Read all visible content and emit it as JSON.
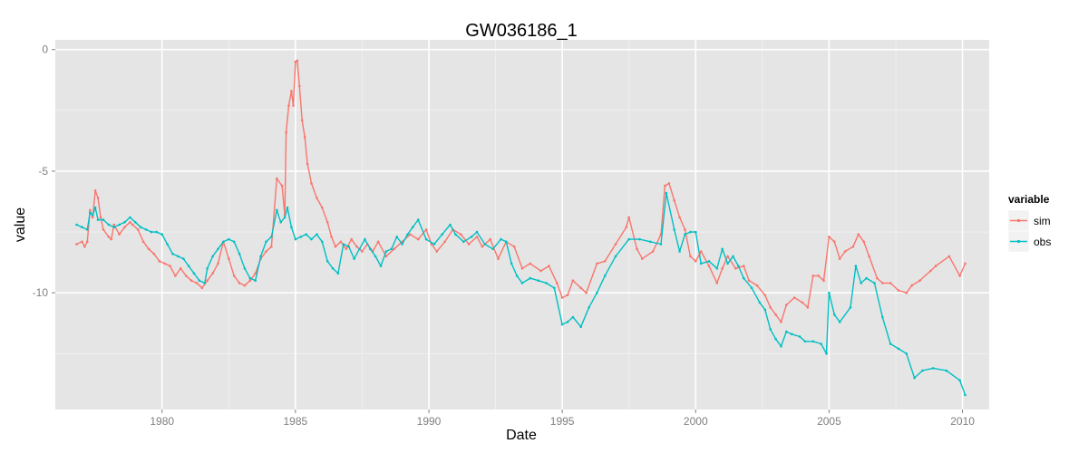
{
  "chart_data": {
    "type": "line",
    "title": "GW036186_1",
    "xlabel": "Date",
    "ylabel": "value",
    "x_axis": "date",
    "xlim": [
      1976.0,
      2011.0
    ],
    "ylim": [
      -14.8,
      0.4
    ],
    "x_ticks": [
      1980,
      1985,
      1990,
      1995,
      2000,
      2005,
      2010
    ],
    "x_tick_labels": [
      "1980",
      "1985",
      "1990",
      "1995",
      "2000",
      "2005",
      "2010"
    ],
    "y_ticks": [
      0,
      -5,
      -10
    ],
    "y_tick_labels": [
      "0",
      "-5",
      "-10"
    ],
    "grid": true,
    "legend": {
      "title": "variable",
      "position": "right"
    },
    "series": [
      {
        "name": "sim",
        "color": "#F8766D",
        "points": [
          [
            1976.8,
            -8.0
          ],
          [
            1977.0,
            -7.9
          ],
          [
            1977.1,
            -8.1
          ],
          [
            1977.2,
            -7.9
          ],
          [
            1977.3,
            -6.6
          ],
          [
            1977.4,
            -6.9
          ],
          [
            1977.5,
            -5.8
          ],
          [
            1977.6,
            -6.1
          ],
          [
            1977.7,
            -6.9
          ],
          [
            1977.8,
            -7.4
          ],
          [
            1978.0,
            -7.7
          ],
          [
            1978.1,
            -7.8
          ],
          [
            1978.2,
            -7.2
          ],
          [
            1978.4,
            -7.6
          ],
          [
            1978.6,
            -7.3
          ],
          [
            1978.8,
            -7.1
          ],
          [
            1978.9,
            -7.2
          ],
          [
            1979.1,
            -7.4
          ],
          [
            1979.3,
            -7.9
          ],
          [
            1979.5,
            -8.2
          ],
          [
            1979.7,
            -8.4
          ],
          [
            1979.9,
            -8.7
          ],
          [
            1980.1,
            -8.8
          ],
          [
            1980.3,
            -8.9
          ],
          [
            1980.5,
            -9.3
          ],
          [
            1980.7,
            -9.0
          ],
          [
            1980.9,
            -9.3
          ],
          [
            1981.1,
            -9.5
          ],
          [
            1981.3,
            -9.6
          ],
          [
            1981.5,
            -9.8
          ],
          [
            1981.7,
            -9.5
          ],
          [
            1981.9,
            -9.2
          ],
          [
            1982.1,
            -8.8
          ],
          [
            1982.3,
            -7.9
          ],
          [
            1982.5,
            -8.6
          ],
          [
            1982.7,
            -9.3
          ],
          [
            1982.9,
            -9.6
          ],
          [
            1983.1,
            -9.7
          ],
          [
            1983.3,
            -9.5
          ],
          [
            1983.5,
            -9.2
          ],
          [
            1983.7,
            -8.6
          ],
          [
            1983.9,
            -8.3
          ],
          [
            1984.1,
            -8.1
          ],
          [
            1984.3,
            -5.3
          ],
          [
            1984.5,
            -5.6
          ],
          [
            1984.6,
            -6.8
          ],
          [
            1984.65,
            -3.4
          ],
          [
            1984.75,
            -2.3
          ],
          [
            1984.85,
            -1.7
          ],
          [
            1984.92,
            -2.3
          ],
          [
            1985.0,
            -0.5
          ],
          [
            1985.07,
            -0.45
          ],
          [
            1985.15,
            -1.5
          ],
          [
            1985.25,
            -2.9
          ],
          [
            1985.35,
            -3.6
          ],
          [
            1985.45,
            -4.7
          ],
          [
            1985.6,
            -5.5
          ],
          [
            1985.8,
            -6.1
          ],
          [
            1986.0,
            -6.5
          ],
          [
            1986.2,
            -7.1
          ],
          [
            1986.35,
            -7.7
          ],
          [
            1986.5,
            -8.1
          ],
          [
            1986.7,
            -7.9
          ],
          [
            1986.9,
            -8.2
          ],
          [
            1987.1,
            -7.8
          ],
          [
            1987.3,
            -8.1
          ],
          [
            1987.5,
            -8.3
          ],
          [
            1987.7,
            -8.0
          ],
          [
            1987.9,
            -8.3
          ],
          [
            1988.1,
            -7.9
          ],
          [
            1988.4,
            -8.5
          ],
          [
            1988.7,
            -8.2
          ],
          [
            1989.0,
            -7.9
          ],
          [
            1989.3,
            -7.6
          ],
          [
            1989.6,
            -7.8
          ],
          [
            1989.9,
            -7.4
          ],
          [
            1990.1,
            -8.0
          ],
          [
            1990.3,
            -8.3
          ],
          [
            1990.6,
            -7.9
          ],
          [
            1990.9,
            -7.4
          ],
          [
            1991.2,
            -7.6
          ],
          [
            1991.5,
            -8.0
          ],
          [
            1991.8,
            -7.7
          ],
          [
            1992.0,
            -8.1
          ],
          [
            1992.3,
            -7.8
          ],
          [
            1992.6,
            -8.6
          ],
          [
            1992.9,
            -7.9
          ],
          [
            1993.2,
            -8.1
          ],
          [
            1993.5,
            -9.0
          ],
          [
            1993.8,
            -8.8
          ],
          [
            1994.2,
            -9.1
          ],
          [
            1994.5,
            -8.9
          ],
          [
            1994.8,
            -9.6
          ],
          [
            1995.0,
            -10.2
          ],
          [
            1995.2,
            -10.1
          ],
          [
            1995.4,
            -9.5
          ],
          [
            1995.7,
            -9.8
          ],
          [
            1995.9,
            -10.0
          ],
          [
            1996.3,
            -8.8
          ],
          [
            1996.6,
            -8.7
          ],
          [
            1997.0,
            -8.0
          ],
          [
            1997.4,
            -7.3
          ],
          [
            1997.5,
            -6.9
          ],
          [
            1997.8,
            -8.2
          ],
          [
            1998.0,
            -8.6
          ],
          [
            1998.4,
            -8.3
          ],
          [
            1998.7,
            -7.6
          ],
          [
            1998.85,
            -5.6
          ],
          [
            1999.0,
            -5.5
          ],
          [
            1999.2,
            -6.2
          ],
          [
            1999.4,
            -6.9
          ],
          [
            1999.6,
            -7.4
          ],
          [
            1999.8,
            -8.5
          ],
          [
            2000.0,
            -8.7
          ],
          [
            2000.2,
            -8.3
          ],
          [
            2000.5,
            -8.9
          ],
          [
            2000.8,
            -9.6
          ],
          [
            2001.0,
            -9.0
          ],
          [
            2001.2,
            -8.5
          ],
          [
            2001.5,
            -9.0
          ],
          [
            2001.8,
            -8.9
          ],
          [
            2002.0,
            -9.5
          ],
          [
            2002.3,
            -9.7
          ],
          [
            2002.6,
            -10.1
          ],
          [
            2002.8,
            -10.6
          ],
          [
            2003.0,
            -10.9
          ],
          [
            2003.2,
            -11.2
          ],
          [
            2003.4,
            -10.5
          ],
          [
            2003.7,
            -10.2
          ],
          [
            2004.0,
            -10.4
          ],
          [
            2004.2,
            -10.6
          ],
          [
            2004.4,
            -9.3
          ],
          [
            2004.6,
            -9.3
          ],
          [
            2004.8,
            -9.5
          ],
          [
            2005.0,
            -7.7
          ],
          [
            2005.2,
            -7.9
          ],
          [
            2005.4,
            -8.6
          ],
          [
            2005.6,
            -8.3
          ],
          [
            2005.9,
            -8.1
          ],
          [
            2006.1,
            -7.6
          ],
          [
            2006.3,
            -7.9
          ],
          [
            2006.5,
            -8.5
          ],
          [
            2006.8,
            -9.4
          ],
          [
            2007.0,
            -9.6
          ],
          [
            2007.3,
            -9.6
          ],
          [
            2007.6,
            -9.9
          ],
          [
            2007.9,
            -10.0
          ],
          [
            2008.1,
            -9.7
          ],
          [
            2008.4,
            -9.5
          ],
          [
            2008.8,
            -9.1
          ],
          [
            2009.0,
            -8.9
          ],
          [
            2009.5,
            -8.5
          ],
          [
            2009.9,
            -9.3
          ],
          [
            2010.1,
            -8.8
          ]
        ]
      },
      {
        "name": "obs",
        "color": "#00BFC4",
        "points": [
          [
            1976.8,
            -7.2
          ],
          [
            1977.0,
            -7.3
          ],
          [
            1977.2,
            -7.4
          ],
          [
            1977.3,
            -6.7
          ],
          [
            1977.4,
            -6.8
          ],
          [
            1977.5,
            -6.5
          ],
          [
            1977.6,
            -7.0
          ],
          [
            1977.8,
            -7.0
          ],
          [
            1978.0,
            -7.2
          ],
          [
            1978.2,
            -7.3
          ],
          [
            1978.4,
            -7.2
          ],
          [
            1978.6,
            -7.1
          ],
          [
            1978.8,
            -6.9
          ],
          [
            1979.0,
            -7.1
          ],
          [
            1979.2,
            -7.3
          ],
          [
            1979.4,
            -7.4
          ],
          [
            1979.6,
            -7.5
          ],
          [
            1979.8,
            -7.5
          ],
          [
            1980.0,
            -7.6
          ],
          [
            1980.2,
            -8.0
          ],
          [
            1980.4,
            -8.4
          ],
          [
            1980.6,
            -8.5
          ],
          [
            1980.8,
            -8.6
          ],
          [
            1981.0,
            -8.9
          ],
          [
            1981.2,
            -9.2
          ],
          [
            1981.4,
            -9.5
          ],
          [
            1981.6,
            -9.6
          ],
          [
            1981.7,
            -9.0
          ],
          [
            1981.9,
            -8.5
          ],
          [
            1982.1,
            -8.2
          ],
          [
            1982.3,
            -7.9
          ],
          [
            1982.5,
            -7.8
          ],
          [
            1982.7,
            -7.9
          ],
          [
            1982.9,
            -8.4
          ],
          [
            1983.1,
            -9.0
          ],
          [
            1983.3,
            -9.4
          ],
          [
            1983.5,
            -9.5
          ],
          [
            1983.7,
            -8.5
          ],
          [
            1983.9,
            -7.9
          ],
          [
            1984.1,
            -7.7
          ],
          [
            1984.3,
            -6.6
          ],
          [
            1984.45,
            -7.1
          ],
          [
            1984.6,
            -6.9
          ],
          [
            1984.7,
            -6.5
          ],
          [
            1984.85,
            -7.3
          ],
          [
            1985.0,
            -7.8
          ],
          [
            1985.2,
            -7.7
          ],
          [
            1985.4,
            -7.6
          ],
          [
            1985.6,
            -7.8
          ],
          [
            1985.8,
            -7.6
          ],
          [
            1986.0,
            -7.9
          ],
          [
            1986.2,
            -8.7
          ],
          [
            1986.4,
            -9.0
          ],
          [
            1986.6,
            -9.2
          ],
          [
            1986.8,
            -8.0
          ],
          [
            1987.0,
            -8.1
          ],
          [
            1987.2,
            -8.6
          ],
          [
            1987.4,
            -8.2
          ],
          [
            1987.6,
            -7.8
          ],
          [
            1987.8,
            -8.2
          ],
          [
            1988.0,
            -8.5
          ],
          [
            1988.2,
            -8.9
          ],
          [
            1988.4,
            -8.3
          ],
          [
            1988.6,
            -8.2
          ],
          [
            1988.8,
            -7.7
          ],
          [
            1989.0,
            -8.0
          ],
          [
            1989.2,
            -7.6
          ],
          [
            1989.4,
            -7.3
          ],
          [
            1989.6,
            -7.0
          ],
          [
            1989.9,
            -7.8
          ],
          [
            1990.2,
            -8.0
          ],
          [
            1990.5,
            -7.6
          ],
          [
            1990.8,
            -7.2
          ],
          [
            1991.0,
            -7.6
          ],
          [
            1991.3,
            -7.9
          ],
          [
            1991.6,
            -7.7
          ],
          [
            1991.8,
            -7.5
          ],
          [
            1992.1,
            -8.0
          ],
          [
            1992.4,
            -8.2
          ],
          [
            1992.7,
            -7.8
          ],
          [
            1992.9,
            -7.9
          ],
          [
            1993.1,
            -8.8
          ],
          [
            1993.3,
            -9.3
          ],
          [
            1993.5,
            -9.6
          ],
          [
            1993.8,
            -9.4
          ],
          [
            1994.1,
            -9.5
          ],
          [
            1994.4,
            -9.6
          ],
          [
            1994.7,
            -9.8
          ],
          [
            1995.0,
            -11.3
          ],
          [
            1995.2,
            -11.2
          ],
          [
            1995.4,
            -11.0
          ],
          [
            1995.7,
            -11.4
          ],
          [
            1996.0,
            -10.6
          ],
          [
            1996.3,
            -10.0
          ],
          [
            1996.6,
            -9.3
          ],
          [
            1997.0,
            -8.5
          ],
          [
            1997.5,
            -7.8
          ],
          [
            1997.9,
            -7.8
          ],
          [
            1998.3,
            -7.9
          ],
          [
            1998.7,
            -8.0
          ],
          [
            1998.9,
            -5.9
          ],
          [
            1999.2,
            -7.4
          ],
          [
            1999.4,
            -8.3
          ],
          [
            1999.6,
            -7.6
          ],
          [
            1999.8,
            -7.5
          ],
          [
            2000.0,
            -7.5
          ],
          [
            2000.2,
            -8.8
          ],
          [
            2000.5,
            -8.7
          ],
          [
            2000.8,
            -9.0
          ],
          [
            2001.0,
            -8.2
          ],
          [
            2001.2,
            -8.8
          ],
          [
            2001.4,
            -8.5
          ],
          [
            2001.6,
            -8.9
          ],
          [
            2001.8,
            -9.4
          ],
          [
            2002.1,
            -9.8
          ],
          [
            2002.4,
            -10.4
          ],
          [
            2002.6,
            -10.7
          ],
          [
            2002.8,
            -11.5
          ],
          [
            2003.0,
            -11.9
          ],
          [
            2003.2,
            -12.2
          ],
          [
            2003.4,
            -11.6
          ],
          [
            2003.6,
            -11.7
          ],
          [
            2003.9,
            -11.8
          ],
          [
            2004.1,
            -12.0
          ],
          [
            2004.4,
            -12.0
          ],
          [
            2004.7,
            -12.1
          ],
          [
            2004.9,
            -12.5
          ],
          [
            2005.0,
            -10.0
          ],
          [
            2005.2,
            -10.9
          ],
          [
            2005.4,
            -11.2
          ],
          [
            2005.8,
            -10.6
          ],
          [
            2006.0,
            -8.9
          ],
          [
            2006.2,
            -9.6
          ],
          [
            2006.4,
            -9.4
          ],
          [
            2006.7,
            -9.6
          ],
          [
            2007.0,
            -11.0
          ],
          [
            2007.3,
            -12.1
          ],
          [
            2007.6,
            -12.3
          ],
          [
            2007.9,
            -12.5
          ],
          [
            2008.2,
            -13.5
          ],
          [
            2008.5,
            -13.2
          ],
          [
            2008.9,
            -13.1
          ],
          [
            2009.4,
            -13.2
          ],
          [
            2009.9,
            -13.6
          ],
          [
            2010.1,
            -14.2
          ]
        ]
      }
    ]
  }
}
